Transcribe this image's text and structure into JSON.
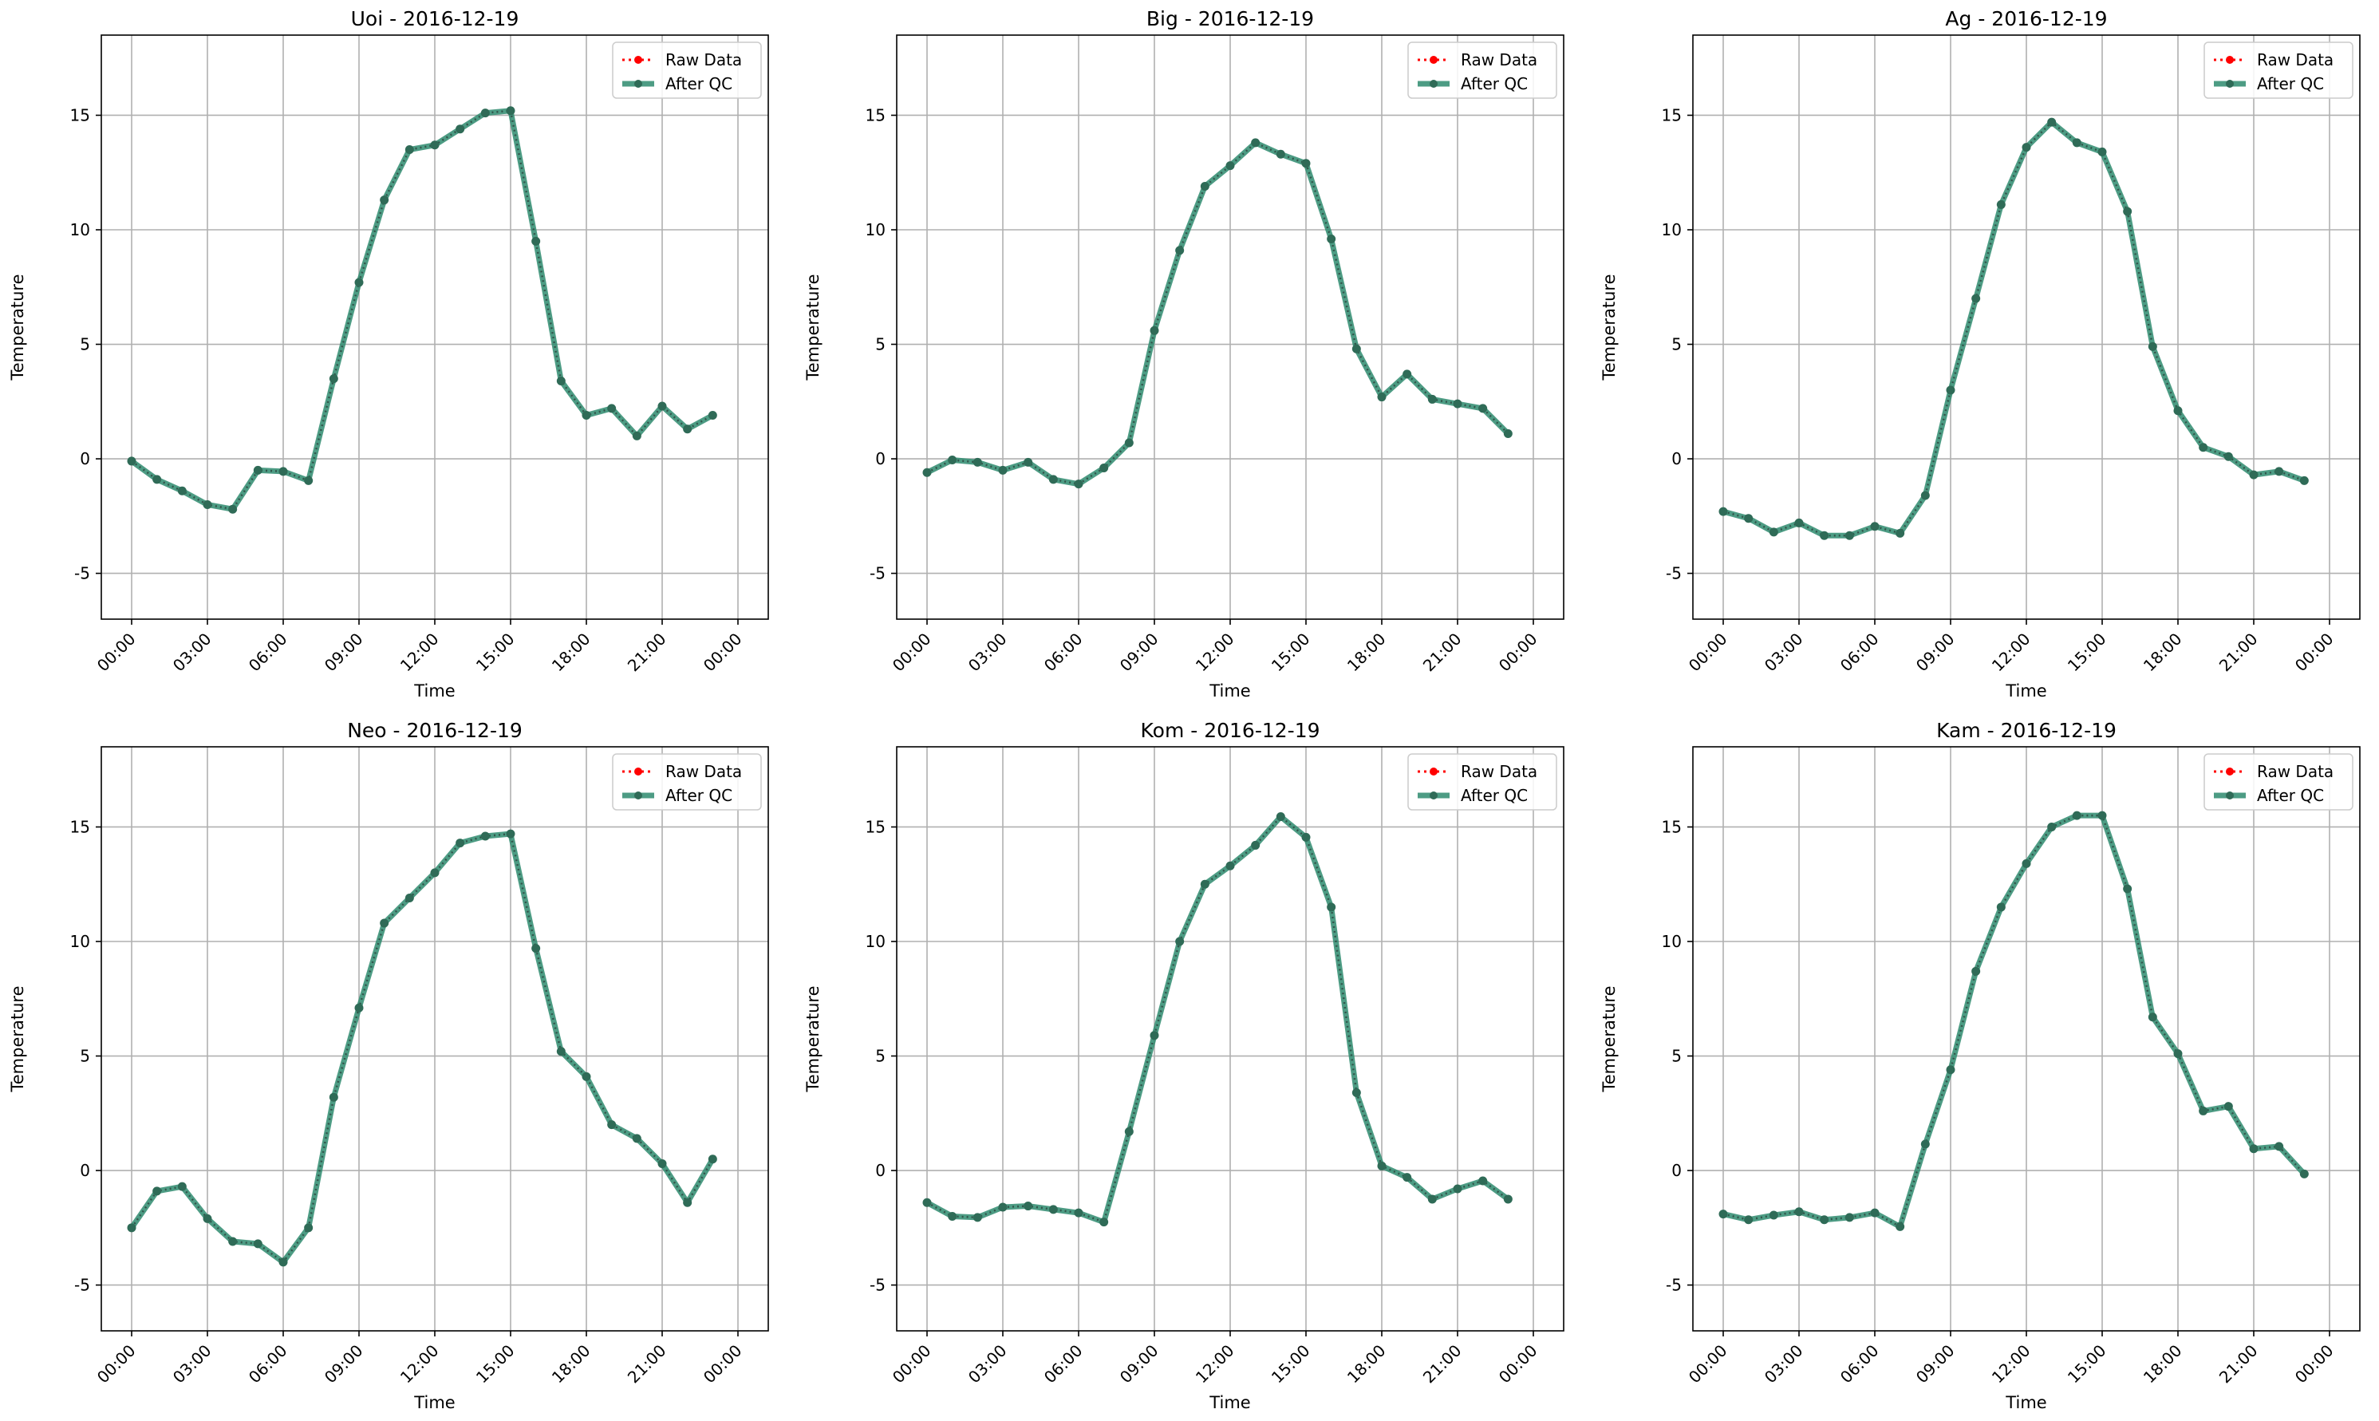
{
  "figure": {
    "x_tick_labels": [
      "00:00",
      "03:00",
      "06:00",
      "09:00",
      "12:00",
      "15:00",
      "18:00",
      "21:00",
      "00:00"
    ],
    "y_ticks": [
      -5,
      0,
      5,
      10,
      15
    ],
    "xlabel": "Time",
    "ylabel": "Temperature",
    "legend": {
      "raw_label": "Raw Data",
      "qc_label": "After QC",
      "raw_color": "#ff0000",
      "qc_color": "#2e8b6e",
      "placement": "top-right"
    },
    "grid": true
  },
  "chart_data": [
    {
      "type": "line",
      "title": "Uoi - 2016-12-19",
      "xlabel": "Time",
      "ylabel": "Temperature",
      "x": [
        "00:00",
        "01:00",
        "02:00",
        "03:00",
        "04:00",
        "05:00",
        "06:00",
        "07:00",
        "08:00",
        "09:00",
        "10:00",
        "11:00",
        "12:00",
        "13:00",
        "14:00",
        "15:00",
        "16:00",
        "17:00",
        "18:00",
        "19:00",
        "20:00",
        "21:00",
        "22:00",
        "23:00"
      ],
      "xlim": [
        "2016-12-19 00:00",
        "2016-12-20 00:00"
      ],
      "ylim": [
        -7,
        18.5
      ],
      "series": [
        {
          "name": "Raw Data",
          "values": [
            -0.1,
            -0.9,
            -1.4,
            -2.0,
            -2.2,
            -0.5,
            -0.55,
            -0.95,
            3.5,
            7.7,
            11.3,
            13.5,
            13.7,
            14.4,
            15.1,
            15.2,
            9.5,
            3.4,
            1.9,
            2.2,
            1.0,
            2.3,
            1.3,
            1.9
          ]
        },
        {
          "name": "After QC",
          "values": [
            -0.1,
            -0.9,
            -1.4,
            -2.0,
            -2.2,
            -0.5,
            -0.55,
            -0.95,
            3.5,
            7.7,
            11.3,
            13.5,
            13.7,
            14.4,
            15.1,
            15.2,
            9.5,
            3.4,
            1.9,
            2.2,
            1.0,
            2.3,
            1.3,
            1.9
          ]
        }
      ]
    },
    {
      "type": "line",
      "title": "Big - 2016-12-19",
      "xlabel": "Time",
      "ylabel": "Temperature",
      "x": [
        "00:00",
        "01:00",
        "02:00",
        "03:00",
        "04:00",
        "05:00",
        "06:00",
        "07:00",
        "08:00",
        "09:00",
        "10:00",
        "11:00",
        "12:00",
        "13:00",
        "14:00",
        "15:00",
        "16:00",
        "17:00",
        "18:00",
        "19:00",
        "20:00",
        "21:00",
        "22:00",
        "23:00"
      ],
      "xlim": [
        "2016-12-19 00:00",
        "2016-12-20 00:00"
      ],
      "ylim": [
        -7,
        18.5
      ],
      "series": [
        {
          "name": "Raw Data",
          "values": [
            -0.6,
            -0.05,
            -0.15,
            -0.5,
            -0.15,
            -0.9,
            -1.1,
            -0.4,
            0.7,
            5.6,
            9.1,
            11.9,
            12.8,
            13.8,
            13.3,
            12.9,
            9.6,
            4.8,
            2.7,
            3.7,
            2.6,
            2.4,
            2.2,
            1.1
          ]
        },
        {
          "name": "After QC",
          "values": [
            -0.6,
            -0.05,
            -0.15,
            -0.5,
            -0.15,
            -0.9,
            -1.1,
            -0.4,
            0.7,
            5.6,
            9.1,
            11.9,
            12.8,
            13.8,
            13.3,
            12.9,
            9.6,
            4.8,
            2.7,
            3.7,
            2.6,
            2.4,
            2.2,
            1.1
          ]
        }
      ]
    },
    {
      "type": "line",
      "title": "Ag - 2016-12-19",
      "xlabel": "Time",
      "ylabel": "Temperature",
      "x": [
        "00:00",
        "01:00",
        "02:00",
        "03:00",
        "04:00",
        "05:00",
        "06:00",
        "07:00",
        "08:00",
        "09:00",
        "10:00",
        "11:00",
        "12:00",
        "13:00",
        "14:00",
        "15:00",
        "16:00",
        "17:00",
        "18:00",
        "19:00",
        "20:00",
        "21:00",
        "22:00",
        "23:00"
      ],
      "xlim": [
        "2016-12-19 00:00",
        "2016-12-20 00:00"
      ],
      "ylim": [
        -7,
        18.5
      ],
      "series": [
        {
          "name": "Raw Data",
          "values": [
            -2.3,
            -2.6,
            -3.2,
            -2.8,
            -3.35,
            -3.35,
            -2.95,
            -3.25,
            -1.6,
            3.0,
            7.0,
            11.1,
            13.6,
            14.7,
            13.8,
            13.4,
            10.8,
            4.9,
            2.1,
            0.5,
            0.1,
            -0.7,
            -0.55,
            -0.95
          ]
        },
        {
          "name": "After QC",
          "values": [
            -2.3,
            -2.6,
            -3.2,
            -2.8,
            -3.35,
            -3.35,
            -2.95,
            -3.25,
            -1.6,
            3.0,
            7.0,
            11.1,
            13.6,
            14.7,
            13.8,
            13.4,
            10.8,
            4.9,
            2.1,
            0.5,
            0.1,
            -0.7,
            -0.55,
            -0.95
          ]
        }
      ]
    },
    {
      "type": "line",
      "title": "Neo - 2016-12-19",
      "xlabel": "Time",
      "ylabel": "Temperature",
      "x": [
        "00:00",
        "01:00",
        "02:00",
        "03:00",
        "04:00",
        "05:00",
        "06:00",
        "07:00",
        "08:00",
        "09:00",
        "10:00",
        "11:00",
        "12:00",
        "13:00",
        "14:00",
        "15:00",
        "16:00",
        "17:00",
        "18:00",
        "19:00",
        "20:00",
        "21:00",
        "22:00",
        "23:00"
      ],
      "xlim": [
        "2016-12-19 00:00",
        "2016-12-20 00:00"
      ],
      "ylim": [
        -7,
        18.5
      ],
      "series": [
        {
          "name": "Raw Data",
          "values": [
            -2.5,
            -0.9,
            -0.7,
            -2.1,
            -3.1,
            -3.2,
            -4.0,
            -2.5,
            3.2,
            7.1,
            10.8,
            11.9,
            13.0,
            14.3,
            14.6,
            14.7,
            9.7,
            5.2,
            4.1,
            2.0,
            1.4,
            0.3,
            -1.4,
            0.5
          ]
        },
        {
          "name": "After QC",
          "values": [
            -2.5,
            -0.9,
            -0.7,
            -2.1,
            -3.1,
            -3.2,
            -4.0,
            -2.5,
            3.2,
            7.1,
            10.8,
            11.9,
            13.0,
            14.3,
            14.6,
            14.7,
            9.7,
            5.2,
            4.1,
            2.0,
            1.4,
            0.3,
            -1.4,
            0.5
          ]
        }
      ]
    },
    {
      "type": "line",
      "title": "Kom - 2016-12-19",
      "xlabel": "Time",
      "ylabel": "Temperature",
      "x": [
        "00:00",
        "01:00",
        "02:00",
        "03:00",
        "04:00",
        "05:00",
        "06:00",
        "07:00",
        "08:00",
        "09:00",
        "10:00",
        "11:00",
        "12:00",
        "13:00",
        "14:00",
        "15:00",
        "16:00",
        "17:00",
        "18:00",
        "19:00",
        "20:00",
        "21:00",
        "22:00",
        "23:00"
      ],
      "xlim": [
        "2016-12-19 00:00",
        "2016-12-20 00:00"
      ],
      "ylim": [
        -7,
        18.5
      ],
      "series": [
        {
          "name": "Raw Data",
          "values": [
            -1.4,
            -2.0,
            -2.05,
            -1.6,
            -1.55,
            -1.7,
            -1.85,
            -2.25,
            1.7,
            5.9,
            10.0,
            12.5,
            13.3,
            14.2,
            15.45,
            14.55,
            11.5,
            3.4,
            0.2,
            -0.3,
            -1.25,
            -0.8,
            -0.45,
            -1.25
          ]
        },
        {
          "name": "After QC",
          "values": [
            -1.4,
            -2.0,
            -2.05,
            -1.6,
            -1.55,
            -1.7,
            -1.85,
            -2.25,
            1.7,
            5.9,
            10.0,
            12.5,
            13.3,
            14.2,
            15.45,
            14.55,
            11.5,
            3.4,
            0.2,
            -0.3,
            -1.25,
            -0.8,
            -0.45,
            -1.25
          ]
        }
      ]
    },
    {
      "type": "line",
      "title": "Kam - 2016-12-19",
      "xlabel": "Time",
      "ylabel": "Temperature",
      "x": [
        "00:00",
        "01:00",
        "02:00",
        "03:00",
        "04:00",
        "05:00",
        "06:00",
        "07:00",
        "08:00",
        "09:00",
        "10:00",
        "11:00",
        "12:00",
        "13:00",
        "14:00",
        "15:00",
        "16:00",
        "17:00",
        "18:00",
        "19:00",
        "20:00",
        "21:00",
        "22:00",
        "23:00"
      ],
      "xlim": [
        "2016-12-19 00:00",
        "2016-12-20 00:00"
      ],
      "ylim": [
        -7,
        18.5
      ],
      "series": [
        {
          "name": "Raw Data",
          "values": [
            -1.9,
            -2.15,
            -1.95,
            -1.8,
            -2.15,
            -2.05,
            -1.85,
            -2.45,
            1.15,
            4.4,
            8.7,
            11.5,
            13.4,
            15.0,
            15.5,
            15.5,
            12.3,
            6.7,
            5.1,
            2.6,
            2.8,
            0.95,
            1.05,
            -0.15
          ]
        },
        {
          "name": "After QC",
          "values": [
            -1.9,
            -2.15,
            -1.95,
            -1.8,
            -2.15,
            -2.05,
            -1.85,
            -2.45,
            1.15,
            4.4,
            8.7,
            11.5,
            13.4,
            15.0,
            15.5,
            15.5,
            12.3,
            6.7,
            5.1,
            2.6,
            2.8,
            0.95,
            1.05,
            -0.15
          ]
        }
      ]
    }
  ]
}
